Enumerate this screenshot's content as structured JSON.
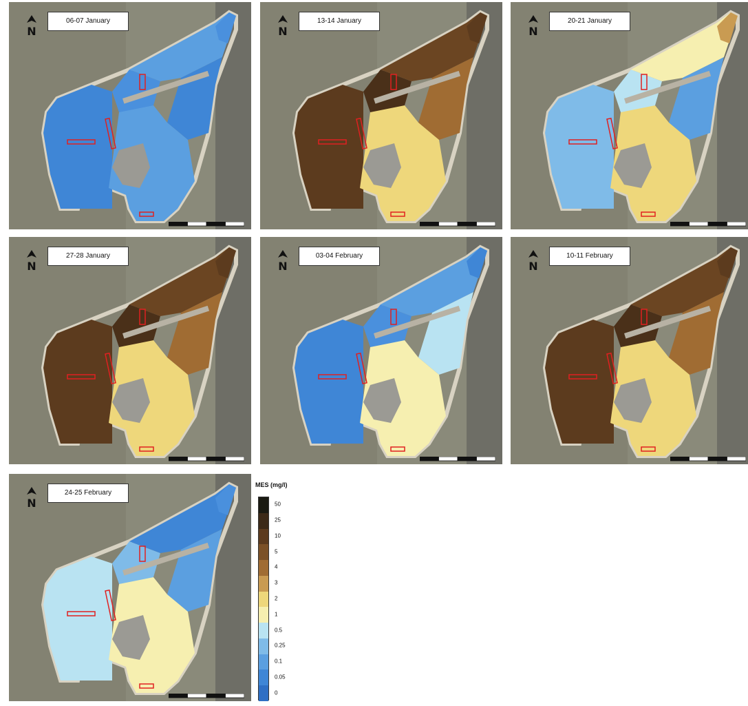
{
  "legend": {
    "title": "MES (mg/l)",
    "classes": [
      {
        "label": "50",
        "color": "#1a1a12"
      },
      {
        "label": "25",
        "color": "#3c2a18"
      },
      {
        "label": "10",
        "color": "#5c3b1e"
      },
      {
        "label": "5",
        "color": "#7b5127"
      },
      {
        "label": "4",
        "color": "#a06c33"
      },
      {
        "label": "3",
        "color": "#c99b52"
      },
      {
        "label": "2",
        "color": "#eed77b"
      },
      {
        "label": "1",
        "color": "#f6efb0"
      },
      {
        "label": "0.5",
        "color": "#b9e3f2"
      },
      {
        "label": "0.25",
        "color": "#7fbbe8"
      },
      {
        "label": "0.1",
        "color": "#5b9fe0"
      },
      {
        "label": "0.05",
        "color": "#3f86d6"
      },
      {
        "label": "0",
        "color": "#2f6fc4"
      }
    ]
  },
  "panels": [
    {
      "label": "06-07 January",
      "palette": [
        "#3f86d6",
        "#4a90dd",
        "#5b9fe0",
        "#3f86d6",
        "#5b9fe0",
        "#4a90dd"
      ]
    },
    {
      "label": "13-14 January",
      "palette": [
        "#5c3b1e",
        "#4a3019",
        "#6b4522",
        "#a06c33",
        "#eed77b",
        "#5c3b1e"
      ]
    },
    {
      "label": "20-21 January",
      "palette": [
        "#7fbbe8",
        "#b9e3f2",
        "#f6efb0",
        "#5b9fe0",
        "#eed77b",
        "#c99b52"
      ]
    },
    {
      "label": "27-28 January",
      "palette": [
        "#5c3b1e",
        "#4a3019",
        "#6b4522",
        "#a06c33",
        "#eed77b",
        "#5c3b1e"
      ]
    },
    {
      "label": "03-04 February",
      "palette": [
        "#3f86d6",
        "#4a90dd",
        "#5b9fe0",
        "#b9e3f2",
        "#f6efb0",
        "#3f86d6"
      ]
    },
    {
      "label": "10-11 February",
      "palette": [
        "#5c3b1e",
        "#4a3019",
        "#6b4522",
        "#a06c33",
        "#eed77b",
        "#5c3b1e"
      ]
    },
    {
      "label": "24-25 February",
      "palette": [
        "#b9e3f2",
        "#7fbbe8",
        "#3f86d6",
        "#5b9fe0",
        "#f6efb0",
        "#4a90dd"
      ]
    }
  ]
}
